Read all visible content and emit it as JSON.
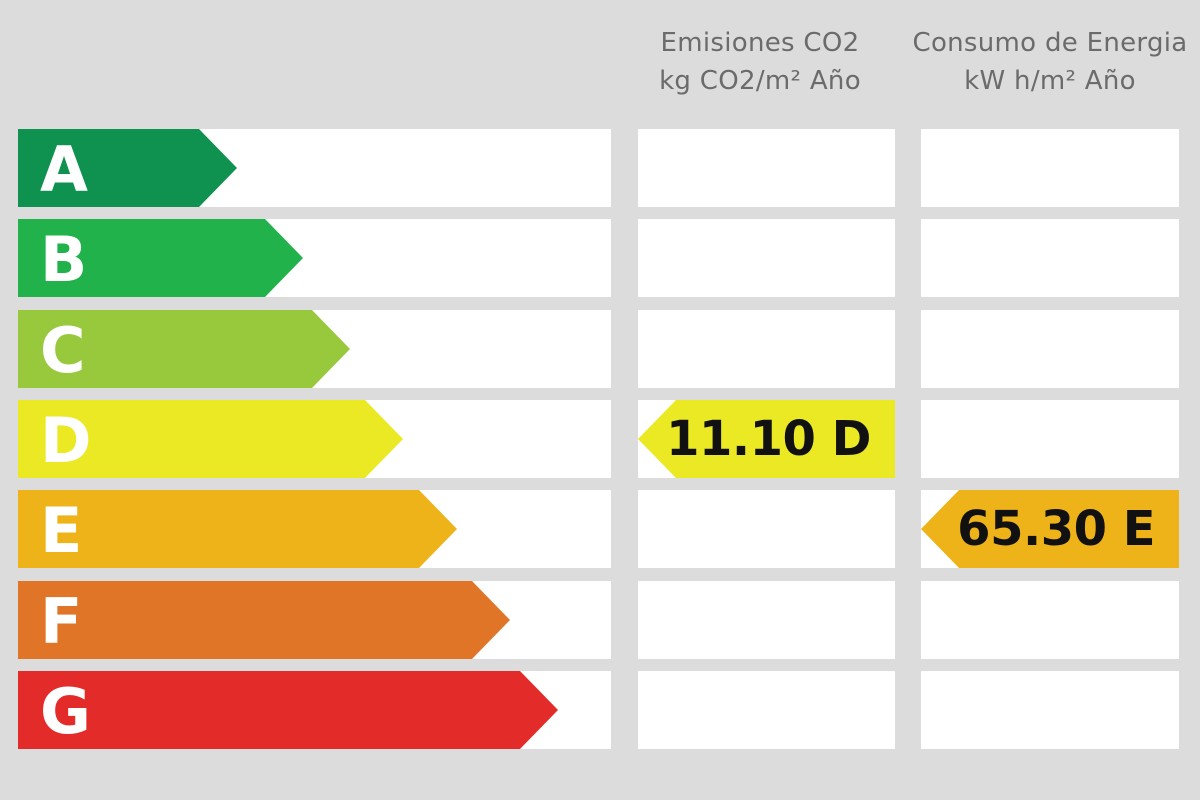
{
  "chart_data": {
    "type": "table",
    "columns": [
      {
        "key": "emissions",
        "title": "Emisiones CO2",
        "unit": "kg CO2/m² Año"
      },
      {
        "key": "consumption",
        "title": "Consumo de Energia",
        "unit": "kW h/m² Año"
      }
    ],
    "classes": [
      {
        "letter": "A",
        "color": "#0f9150",
        "length": 0.37
      },
      {
        "letter": "B",
        "color": "#21b24b",
        "length": 0.48
      },
      {
        "letter": "C",
        "color": "#98c93c",
        "length": 0.56
      },
      {
        "letter": "D",
        "color": "#ebe824",
        "length": 0.65
      },
      {
        "letter": "E",
        "color": "#eeb319",
        "length": 0.74
      },
      {
        "letter": "F",
        "color": "#e07527",
        "length": 0.83
      },
      {
        "letter": "G",
        "color": "#e32b2a",
        "length": 0.91
      }
    ],
    "ratings": {
      "emissions": {
        "value": "11.10",
        "class": "D",
        "label": "11.10 D"
      },
      "consumption": {
        "value": "65.30",
        "class": "E",
        "label": "65.30 E"
      }
    }
  }
}
